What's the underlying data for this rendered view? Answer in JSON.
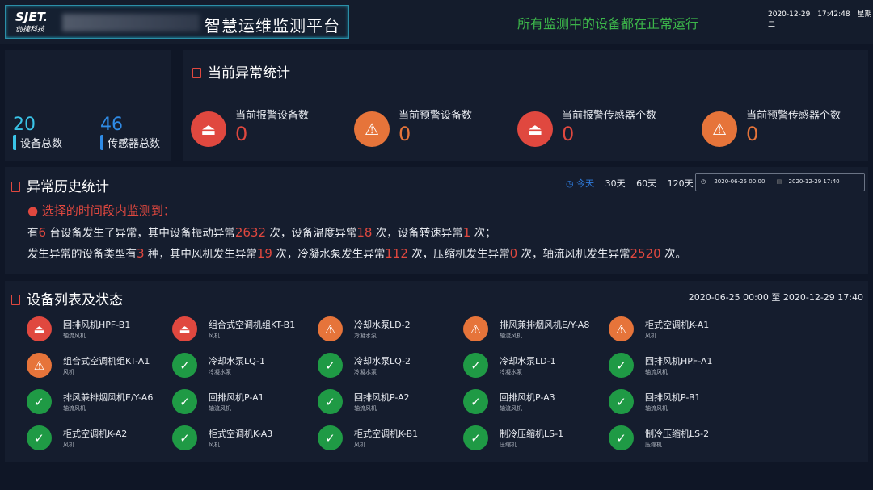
{
  "header": {
    "logo": "SJET.",
    "logo_sub": "创捷科技",
    "title": "智慧运维监测平台",
    "status": "所有监测中的设备都在正常运行",
    "date": "2020-12-29",
    "time": "17:42:48",
    "weekday": "星期二"
  },
  "totals": {
    "devices": {
      "value": "20",
      "label": "设备总数"
    },
    "sensors": {
      "value": "46",
      "label": "传感器总数"
    }
  },
  "current": {
    "title": "当前异常统计",
    "stats": [
      {
        "label": "当前报警设备数",
        "value": "0",
        "icon": "alarm-icon",
        "color": "#e0483f"
      },
      {
        "label": "当前预警设备数",
        "value": "0",
        "icon": "warning-icon",
        "color": "#e6743a"
      },
      {
        "label": "当前报警传感器个数",
        "value": "0",
        "icon": "alarm-icon",
        "color": "#e0483f"
      },
      {
        "label": "当前预警传感器个数",
        "value": "0",
        "icon": "warning-icon",
        "color": "#e6743a"
      }
    ]
  },
  "history": {
    "title": "异常历史统计",
    "ranges": [
      "今天",
      "30天",
      "60天",
      "120天"
    ],
    "active_range": "今天",
    "start": "2020-06-25 00:00",
    "end": "2020-12-29 17:40",
    "notice": "选择的时间段内监测到：",
    "line1": [
      "有",
      "6",
      "台设备发生了异常，其中设备振动异常",
      "2632",
      "次，设备温度异常",
      "18",
      "次，设备转速异常",
      "1",
      "次；"
    ],
    "line2": [
      "发生异常的设备类型有",
      "3",
      "种，其中风机发生异常",
      "19",
      "次，冷凝水泵发生异常",
      "112",
      "次，压缩机发生异常",
      "0",
      "次，轴流风机发生异常",
      "2520",
      "次。"
    ]
  },
  "devices": {
    "title": "设备列表及状态",
    "range": "2020-06-25 00:00 至 2020-12-29 17:40",
    "items": [
      {
        "name": "回排风机HPF-B1",
        "type": "轴流风机",
        "status": "alarm"
      },
      {
        "name": "组合式空调机组KT-B1",
        "type": "风机",
        "status": "alarm"
      },
      {
        "name": "冷却水泵LD-2",
        "type": "冷凝水泵",
        "status": "warning"
      },
      {
        "name": "排风兼排烟风机E/Y-A8",
        "type": "轴流风机",
        "status": "warning"
      },
      {
        "name": "柜式空调机K-A1",
        "type": "风机",
        "status": "warning"
      },
      {
        "name": "组合式空调机组KT-A1",
        "type": "风机",
        "status": "warning"
      },
      {
        "name": "冷却水泵LQ-1",
        "type": "冷凝水泵",
        "status": "ok"
      },
      {
        "name": "冷却水泵LQ-2",
        "type": "冷凝水泵",
        "status": "ok"
      },
      {
        "name": "冷却水泵LD-1",
        "type": "冷凝水泵",
        "status": "ok"
      },
      {
        "name": "回排风机HPF-A1",
        "type": "轴流风机",
        "status": "ok"
      },
      {
        "name": "排风兼排烟风机E/Y-A6",
        "type": "轴流风机",
        "status": "ok"
      },
      {
        "name": "回排风机P-A1",
        "type": "轴流风机",
        "status": "ok"
      },
      {
        "name": "回排风机P-A2",
        "type": "轴流风机",
        "status": "ok"
      },
      {
        "name": "回排风机P-A3",
        "type": "轴流风机",
        "status": "ok"
      },
      {
        "name": "回排风机P-B1",
        "type": "轴流风机",
        "status": "ok"
      },
      {
        "name": "柜式空调机K-A2",
        "type": "风机",
        "status": "ok"
      },
      {
        "name": "柜式空调机K-A3",
        "type": "风机",
        "status": "ok"
      },
      {
        "name": "柜式空调机K-B1",
        "type": "风机",
        "status": "ok"
      },
      {
        "name": "制冷压缩机LS-1",
        "type": "压缩机",
        "status": "ok"
      },
      {
        "name": "制冷压缩机LS-2",
        "type": "压缩机",
        "status": "ok"
      }
    ]
  }
}
